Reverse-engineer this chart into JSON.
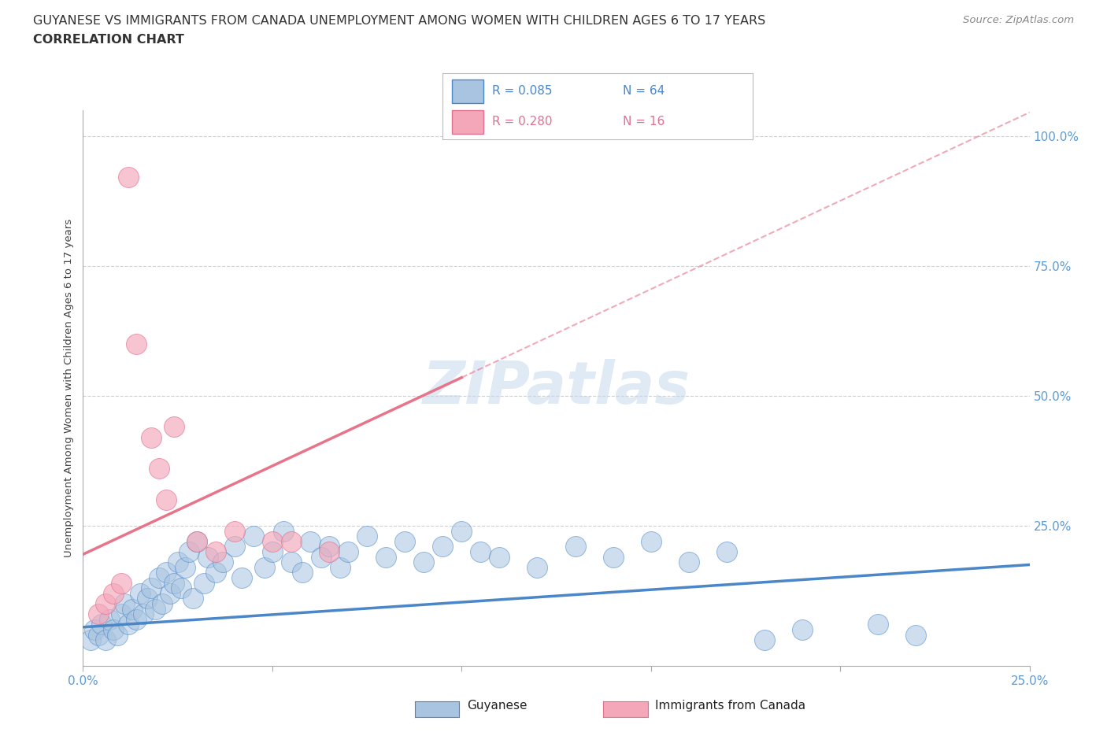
{
  "title_line1": "GUYANESE VS IMMIGRANTS FROM CANADA UNEMPLOYMENT AMONG WOMEN WITH CHILDREN AGES 6 TO 17 YEARS",
  "title_line2": "CORRELATION CHART",
  "source_text": "Source: ZipAtlas.com",
  "ylabel": "Unemployment Among Women with Children Ages 6 to 17 years",
  "xlim": [
    0.0,
    0.25
  ],
  "ylim": [
    -0.02,
    1.05
  ],
  "xtick_positions": [
    0.0,
    0.05,
    0.1,
    0.15,
    0.2,
    0.25
  ],
  "xticklabels": [
    "0.0%",
    "",
    "",
    "",
    "",
    "25.0%"
  ],
  "ytick_positions": [
    0.25,
    0.5,
    0.75,
    1.0
  ],
  "ytick_labels_right": [
    "25.0%",
    "50.0%",
    "75.0%",
    "100.0%"
  ],
  "guyanese_color": "#a8c4e0",
  "canada_color": "#f4a7b9",
  "trendline_blue_color": "#4a86c8",
  "trendline_pink_color": "#e8748a",
  "legend_R_blue": "0.085",
  "legend_N_blue": "64",
  "legend_R_pink": "0.280",
  "legend_N_pink": "16",
  "watermark": "ZIPatlas",
  "background_color": "#ffffff",
  "blue_trend_x0": 0.0,
  "blue_trend_y0": 0.055,
  "blue_trend_x1": 0.25,
  "blue_trend_y1": 0.175,
  "pink_trend_x0": 0.0,
  "pink_trend_y0": 0.195,
  "pink_trend_x1": 0.1,
  "pink_trend_y1": 0.535,
  "pink_trend_dashed_x0": 0.1,
  "pink_trend_dashed_y0": 0.535,
  "pink_trend_dashed_x1": 0.25,
  "pink_trend_dashed_y1": 1.045,
  "guyanese_scatter_x": [
    0.002,
    0.003,
    0.004,
    0.005,
    0.006,
    0.007,
    0.008,
    0.009,
    0.01,
    0.011,
    0.012,
    0.013,
    0.014,
    0.015,
    0.016,
    0.017,
    0.018,
    0.019,
    0.02,
    0.021,
    0.022,
    0.023,
    0.024,
    0.025,
    0.026,
    0.027,
    0.028,
    0.029,
    0.03,
    0.032,
    0.033,
    0.035,
    0.037,
    0.04,
    0.042,
    0.045,
    0.048,
    0.05,
    0.053,
    0.055,
    0.058,
    0.06,
    0.063,
    0.065,
    0.068,
    0.07,
    0.075,
    0.08,
    0.085,
    0.09,
    0.095,
    0.1,
    0.105,
    0.11,
    0.12,
    0.13,
    0.14,
    0.15,
    0.16,
    0.17,
    0.18,
    0.19,
    0.21,
    0.22
  ],
  "guyanese_scatter_y": [
    0.03,
    0.05,
    0.04,
    0.06,
    0.03,
    0.07,
    0.05,
    0.04,
    0.08,
    0.1,
    0.06,
    0.09,
    0.07,
    0.12,
    0.08,
    0.11,
    0.13,
    0.09,
    0.15,
    0.1,
    0.16,
    0.12,
    0.14,
    0.18,
    0.13,
    0.17,
    0.2,
    0.11,
    0.22,
    0.14,
    0.19,
    0.16,
    0.18,
    0.21,
    0.15,
    0.23,
    0.17,
    0.2,
    0.24,
    0.18,
    0.16,
    0.22,
    0.19,
    0.21,
    0.17,
    0.2,
    0.23,
    0.19,
    0.22,
    0.18,
    0.21,
    0.24,
    0.2,
    0.19,
    0.17,
    0.21,
    0.19,
    0.22,
    0.18,
    0.2,
    0.03,
    0.05,
    0.06,
    0.04
  ],
  "canada_scatter_x": [
    0.004,
    0.006,
    0.008,
    0.01,
    0.012,
    0.014,
    0.018,
    0.02,
    0.022,
    0.024,
    0.03,
    0.035,
    0.04,
    0.05,
    0.055,
    0.065
  ],
  "canada_scatter_y": [
    0.08,
    0.1,
    0.12,
    0.14,
    0.92,
    0.6,
    0.42,
    0.36,
    0.3,
    0.44,
    0.22,
    0.2,
    0.24,
    0.22,
    0.22,
    0.2
  ]
}
